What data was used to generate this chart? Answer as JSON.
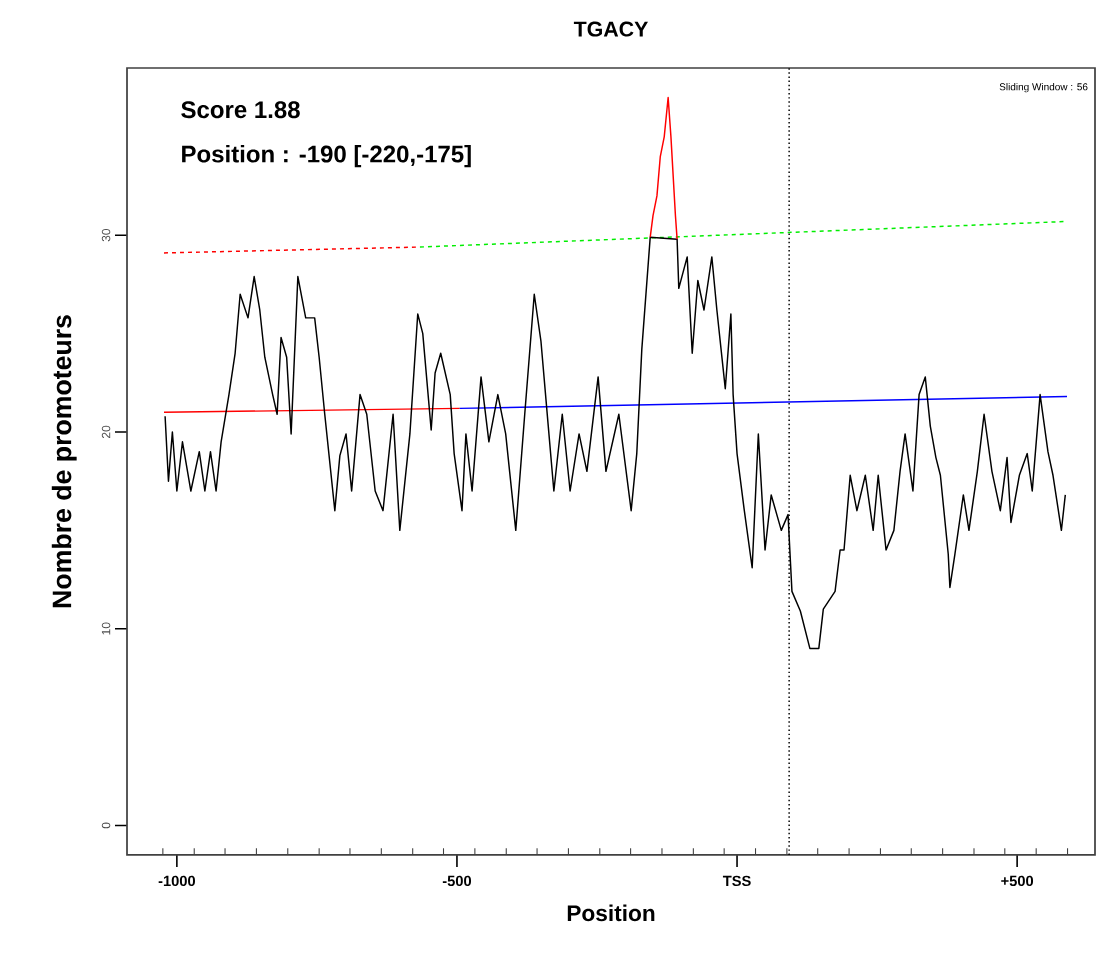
{
  "chart_data": {
    "type": "line",
    "title": "TGACY",
    "xlabel": "Position",
    "ylabel": "Nombre de promoteurs",
    "annotations": [
      "Score 1.88",
      "Position : -190 [-220,-175]",
      "Sliding Window : 56"
    ],
    "xlim": [
      -1089,
      639
    ],
    "ylim": [
      -1.5,
      38.5
    ],
    "xticks": [
      {
        "value": -1000,
        "label": "-1000"
      },
      {
        "value": -500,
        "label": "-500"
      },
      {
        "value": 0,
        "label": "TSS"
      },
      {
        "value": 500,
        "label": "+500"
      },
      {
        "value": -1025,
        "label": null
      },
      {
        "value": -969,
        "label": null
      },
      {
        "value": -914,
        "label": null
      },
      {
        "value": -858,
        "label": null
      },
      {
        "value": -802,
        "label": null
      },
      {
        "value": -746,
        "label": null
      },
      {
        "value": -691,
        "label": null
      },
      {
        "value": -635,
        "label": null
      },
      {
        "value": -579,
        "label": null
      },
      {
        "value": -524,
        "label": null
      },
      {
        "value": -468,
        "label": null
      },
      {
        "value": -412,
        "label": null
      },
      {
        "value": -357,
        "label": null
      },
      {
        "value": -301,
        "label": null
      },
      {
        "value": -245,
        "label": null
      },
      {
        "value": -190,
        "label": null
      },
      {
        "value": -134,
        "label": null
      },
      {
        "value": -78,
        "label": null
      },
      {
        "value": -23,
        "label": null
      },
      {
        "value": 33,
        "label": null
      },
      {
        "value": 89,
        "label": null
      },
      {
        "value": 144,
        "label": null
      },
      {
        "value": 200,
        "label": null
      },
      {
        "value": 256,
        "label": null
      },
      {
        "value": 311,
        "label": null
      },
      {
        "value": 367,
        "label": null
      },
      {
        "value": 423,
        "label": null
      },
      {
        "value": 478,
        "label": null
      },
      {
        "value": 534,
        "label": null
      },
      {
        "value": 590,
        "label": null
      }
    ],
    "yticks": [
      0,
      10,
      20,
      30
    ],
    "ref_lines": [
      {
        "axis": "x",
        "value": 93,
        "color": "#000000",
        "line_style": "dotted"
      }
    ],
    "series": [
      {
        "color": "#ff0000",
        "line_style": "dashed",
        "x": [
          -1023,
          -566
        ],
        "values": [
          29.1,
          29.4
        ]
      },
      {
        "color": "#00ee00",
        "line_style": "dashed",
        "x": [
          -566,
          589
        ],
        "values": [
          29.4,
          30.7
        ]
      },
      {
        "color": "#ff0000",
        "line_style": "solid",
        "x": [
          -1023,
          -495
        ],
        "values": [
          21.0,
          21.2
        ]
      },
      {
        "color": "#0000ff",
        "line_style": "solid",
        "x": [
          -495,
          589
        ],
        "values": [
          21.2,
          21.8
        ]
      },
      {
        "color": "#000000",
        "line_style": "solid",
        "x": [
          -1021,
          -1015,
          -1008,
          -1000,
          -990,
          -975,
          -960,
          -950,
          -940,
          -930,
          -921,
          -907,
          -896,
          -887,
          -873,
          -862,
          -852,
          -843,
          -829,
          -821,
          -814,
          -804,
          -796,
          -784,
          -770,
          -754,
          -746,
          -736,
          -718,
          -709,
          -698,
          -688,
          -673,
          -661,
          -646,
          -632,
          -614,
          -602,
          -584,
          -570,
          -561,
          -546,
          -539,
          -529,
          -512,
          -505,
          -491,
          -484,
          -473,
          -457,
          -443,
          -427,
          -413,
          -395,
          -379,
          -362,
          -350,
          -337,
          -327,
          -312,
          -298,
          -282,
          -268,
          -248,
          -234,
          -211,
          -189,
          -179,
          -170,
          -155,
          -107,
          -104,
          -89,
          -80,
          -70,
          -59,
          -45,
          -36,
          -21,
          -11,
          -7,
          0,
          13,
          27,
          38,
          50,
          61,
          79,
          91,
          98,
          113,
          130,
          146,
          154,
          175,
          184,
          191,
          202,
          214,
          229,
          243,
          252,
          266,
          280,
          291,
          300,
          314,
          325,
          336,
          345,
          355,
          363,
          377,
          380,
          389,
          404,
          414,
          429,
          441,
          455,
          470,
          482,
          489,
          504,
          518,
          527,
          541,
          555,
          564,
          579,
          586
        ],
        "values": [
          20.8,
          17.5,
          20,
          17,
          19.5,
          17,
          19,
          17,
          19,
          17,
          19.5,
          21.9,
          24,
          27,
          25.8,
          27.9,
          26.2,
          23.8,
          21.9,
          20.9,
          24.8,
          23.8,
          19.9,
          27.9,
          25.8,
          25.8,
          23.8,
          20.9,
          16,
          18.8,
          19.9,
          17,
          21.9,
          20.9,
          17,
          16,
          20.9,
          15,
          19.9,
          26,
          25,
          20.1,
          23,
          24,
          21.9,
          18.9,
          16,
          19.9,
          17,
          22.8,
          19.5,
          21.9,
          19.9,
          15,
          20.9,
          27,
          24.6,
          20.3,
          17,
          20.9,
          17,
          19.9,
          18,
          22.8,
          18,
          20.9,
          16,
          18.9,
          24.2,
          29.9,
          29.8,
          27.3,
          28.9,
          24,
          27.7,
          26.2,
          28.9,
          26.2,
          22.2,
          26,
          21.9,
          18.9,
          16,
          13.1,
          19.9,
          14,
          16.8,
          15,
          15.8,
          11.9,
          10.9,
          9,
          9,
          11,
          11.9,
          14,
          14,
          17.8,
          16,
          17.8,
          15,
          17.8,
          14,
          15,
          18,
          19.9,
          17,
          21.9,
          22.8,
          20.3,
          18.7,
          17.8,
          13.8,
          12.1,
          13.8,
          16.8,
          15,
          18,
          20.9,
          18,
          16,
          18.7,
          15.4,
          17.8,
          18.9,
          17,
          21.9,
          19,
          17.8,
          15,
          16.8
        ]
      },
      {
        "color": "#ff0000",
        "line_style": "solid",
        "x": [
          -155,
          -150,
          -143,
          -137,
          -130,
          -123,
          -118,
          -110,
          -107
        ],
        "values": [
          29.9,
          31,
          32,
          34,
          35,
          37,
          35,
          31,
          29.8
        ]
      }
    ]
  }
}
